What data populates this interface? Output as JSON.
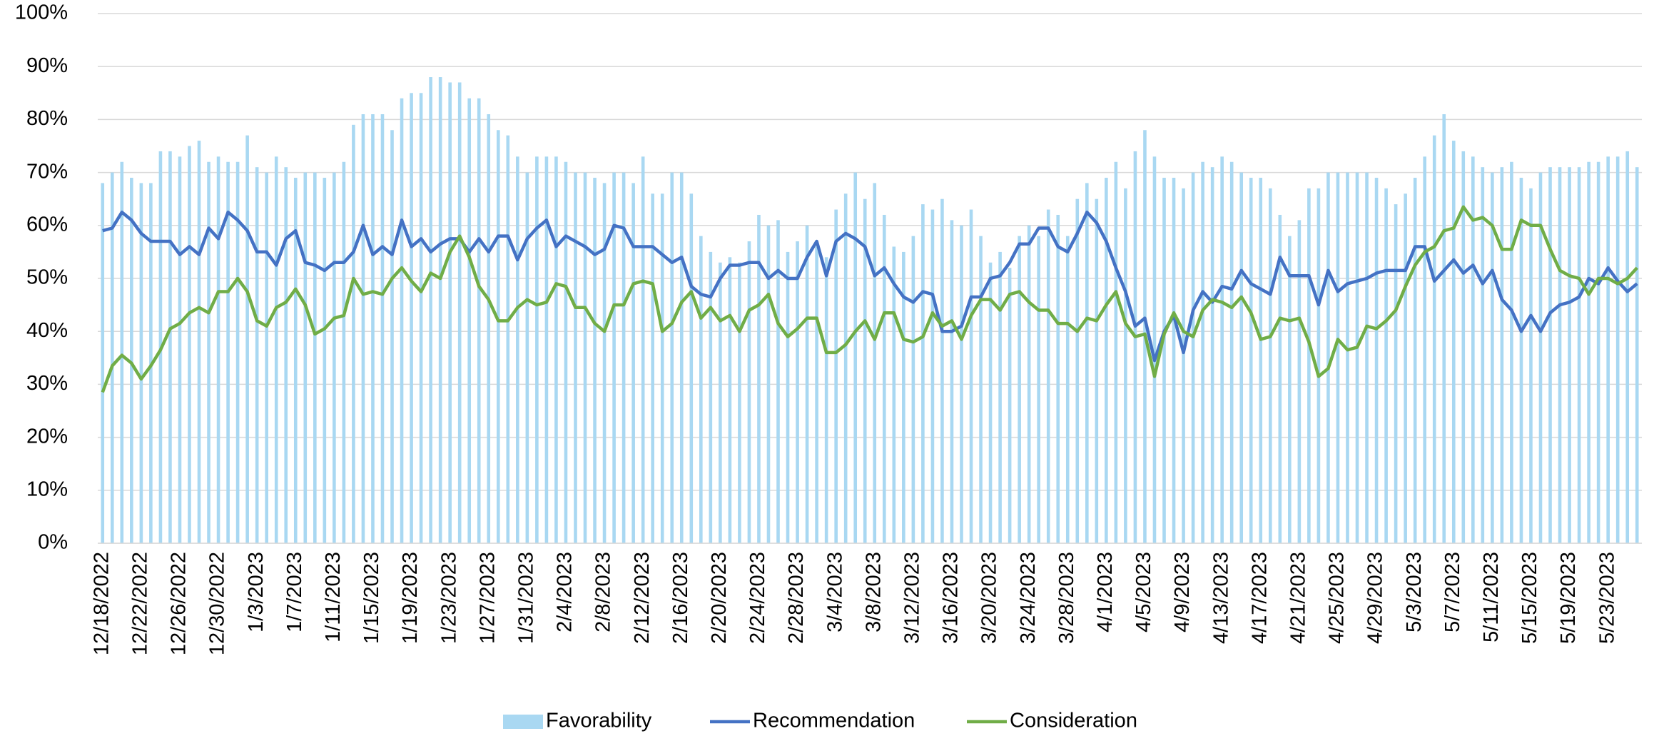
{
  "chart_data": {
    "type": "bar",
    "categories": [
      "12/18/2022",
      null,
      null,
      null,
      "12/22/2022",
      null,
      null,
      null,
      "12/26/2022",
      null,
      null,
      null,
      "12/30/2022",
      null,
      null,
      null,
      "1/3/2023",
      null,
      null,
      null,
      "1/7/2023",
      null,
      null,
      null,
      "1/11/2023",
      null,
      null,
      null,
      "1/15/2023",
      null,
      null,
      null,
      "1/19/2023",
      null,
      null,
      null,
      "1/23/2023",
      null,
      null,
      null,
      "1/27/2023",
      null,
      null,
      null,
      "1/31/2023",
      null,
      null,
      null,
      "2/4/2023",
      null,
      null,
      null,
      "2/8/2023",
      null,
      null,
      null,
      "2/12/2023",
      null,
      null,
      null,
      "2/16/2023",
      null,
      null,
      null,
      "2/20/2023",
      null,
      null,
      null,
      "2/24/2023",
      null,
      null,
      null,
      "2/28/2023",
      null,
      null,
      null,
      "3/4/2023",
      null,
      null,
      null,
      "3/8/2023",
      null,
      null,
      null,
      "3/12/2023",
      null,
      null,
      null,
      "3/16/2023",
      null,
      null,
      null,
      "3/20/2023",
      null,
      null,
      null,
      "3/24/2023",
      null,
      null,
      null,
      "3/28/2023",
      null,
      null,
      null,
      "4/1/2023",
      null,
      null,
      null,
      "4/5/2023",
      null,
      null,
      null,
      "4/9/2023",
      null,
      null,
      null,
      "4/13/2023",
      null,
      null,
      null,
      "4/17/2023",
      null,
      null,
      null,
      "4/21/2023",
      null,
      null,
      null,
      "4/25/2023",
      null,
      null,
      null,
      "4/29/2023",
      null,
      null,
      null,
      "5/3/2023",
      null,
      null,
      null,
      "5/7/2023",
      null,
      null,
      null,
      "5/11/2023",
      null,
      null,
      null,
      "5/15/2023",
      null,
      null,
      null,
      "5/19/2023",
      null,
      null,
      null,
      "5/23/2023",
      null,
      null,
      null
    ],
    "series": [
      {
        "name": "Favorability",
        "type": "bar",
        "color": "#a9d8f2",
        "values": [
          68,
          70,
          72,
          69,
          68,
          68,
          74,
          74,
          73,
          75,
          76,
          72,
          73,
          72,
          72,
          77,
          71,
          70,
          73,
          71,
          69,
          70,
          70,
          69,
          70,
          72,
          79,
          81,
          81,
          81,
          78,
          84,
          85,
          85,
          88,
          88,
          87,
          87,
          84,
          84,
          81,
          78,
          77,
          73,
          70,
          73,
          73,
          73,
          72,
          70,
          70,
          69,
          68,
          70,
          70,
          68,
          73,
          66,
          66,
          70,
          70,
          66,
          58,
          55,
          53,
          54,
          53,
          57,
          62,
          60,
          61,
          55,
          57,
          60,
          56,
          54,
          63,
          66,
          70,
          65,
          68,
          62,
          56,
          55,
          58,
          64,
          63,
          65,
          61,
          60,
          63,
          58,
          53,
          55,
          52,
          58,
          60,
          58,
          63,
          62,
          58,
          65,
          68,
          65,
          69,
          72,
          67,
          74,
          78,
          73,
          69,
          69,
          67,
          70,
          72,
          71,
          73,
          72,
          70,
          69,
          69,
          67,
          62,
          58,
          61,
          67,
          67,
          70,
          70,
          70,
          70,
          70,
          69,
          67,
          64,
          66,
          69,
          73,
          77,
          81,
          76,
          74,
          73,
          71,
          70,
          71,
          72,
          69,
          67,
          70,
          71,
          71,
          71,
          71,
          72,
          72,
          73,
          73,
          74,
          71
        ]
      },
      {
        "name": "Recommendation",
        "type": "line",
        "color": "#4472c4",
        "values": [
          59,
          59.5,
          62.5,
          61,
          58.5,
          57,
          57,
          57,
          54.5,
          56,
          54.5,
          59.5,
          57.5,
          62.5,
          61,
          59,
          55,
          55,
          52.5,
          57.5,
          59,
          53,
          52.5,
          51.5,
          53,
          53,
          55,
          60,
          54.5,
          56,
          54.5,
          61,
          56,
          57.5,
          55,
          56.5,
          57.5,
          57.5,
          55,
          57.5,
          55,
          58,
          58,
          53.5,
          57.5,
          59.5,
          61,
          56,
          58,
          57,
          56,
          54.5,
          55.5,
          60,
          59.5,
          56,
          56,
          56,
          54.5,
          53,
          54,
          48.5,
          47,
          46.5,
          50,
          52.5,
          52.5,
          53,
          53,
          50,
          51.5,
          50,
          50,
          54,
          57,
          50.5,
          57,
          58.5,
          57.5,
          56,
          50.5,
          52,
          49,
          46.5,
          45.5,
          47.5,
          47,
          40,
          40,
          41,
          46.5,
          46.5,
          50,
          50.5,
          53,
          56.5,
          56.5,
          59.5,
          59.5,
          56,
          55,
          58.5,
          62.5,
          60.5,
          57,
          52,
          47.5,
          41,
          42.5,
          34.5,
          40,
          43,
          36,
          44,
          47.5,
          45.5,
          48.5,
          48,
          51.5,
          49,
          48,
          47,
          54,
          50.5,
          50.5,
          50.5,
          45,
          51.5,
          47.5,
          49,
          49.5,
          50,
          51,
          51.5,
          51.5,
          51.5,
          56,
          56,
          49.5,
          51.5,
          53.5,
          51,
          52.5,
          49,
          51.5,
          46,
          44,
          40,
          43,
          40,
          43.5,
          45,
          45.5,
          46.5,
          50,
          49,
          52,
          49.5,
          47.5,
          49
        ]
      },
      {
        "name": "Consideration",
        "type": "line",
        "color": "#70ad47",
        "values": [
          28.5,
          33.5,
          35.5,
          34,
          31,
          33.5,
          36.5,
          40.5,
          41.5,
          43.5,
          44.5,
          43.5,
          47.5,
          47.5,
          50,
          47.5,
          42,
          41,
          44.5,
          45.5,
          48,
          45,
          39.5,
          40.5,
          42.5,
          43,
          50,
          47,
          47.5,
          47,
          50,
          52,
          49.5,
          47.5,
          51,
          50,
          55,
          58,
          54,
          48.5,
          46,
          42,
          42,
          44.5,
          46,
          45,
          45.5,
          49,
          48.5,
          44.5,
          44.5,
          41.5,
          40,
          45,
          45,
          49,
          49.5,
          49,
          40,
          41.5,
          45.5,
          47.5,
          42.5,
          44.5,
          42,
          43,
          40,
          44,
          45,
          47,
          41.5,
          39,
          40.5,
          42.5,
          42.5,
          36,
          36,
          37.5,
          40,
          42,
          38.5,
          43.5,
          43.5,
          38.5,
          38,
          39,
          43.5,
          41,
          42,
          38.5,
          43,
          46,
          46,
          44,
          47,
          47.5,
          45.5,
          44,
          44,
          41.5,
          41.5,
          40,
          42.5,
          42,
          45,
          47.5,
          41.5,
          39,
          39.5,
          31.5,
          39.5,
          43.5,
          40,
          39,
          44,
          46,
          45.5,
          44.5,
          46.5,
          43.5,
          38.5,
          39,
          42.5,
          42,
          42.5,
          38,
          31.5,
          33,
          38.5,
          36.5,
          37,
          41,
          40.5,
          42,
          44,
          48.5,
          52.5,
          55,
          56,
          59,
          59.5,
          63.5,
          61,
          61.5,
          60,
          55.5,
          55.5,
          61,
          60,
          60,
          55.5,
          51.5,
          50.5,
          50,
          47,
          50,
          50,
          49,
          50,
          52
        ]
      }
    ],
    "ylim": [
      0,
      100
    ],
    "yticks": [
      {
        "value": 0,
        "label": "0%"
      },
      {
        "value": 10,
        "label": "10%"
      },
      {
        "value": 20,
        "label": "20%"
      },
      {
        "value": 30,
        "label": "30%"
      },
      {
        "value": 40,
        "label": "40%"
      },
      {
        "value": 50,
        "label": "50%"
      },
      {
        "value": 60,
        "label": "60%"
      },
      {
        "value": 70,
        "label": "70%"
      },
      {
        "value": 80,
        "label": "80%"
      },
      {
        "value": 90,
        "label": "90%"
      },
      {
        "value": 100,
        "label": "100%"
      }
    ],
    "grid": true,
    "legend": "bottom"
  }
}
